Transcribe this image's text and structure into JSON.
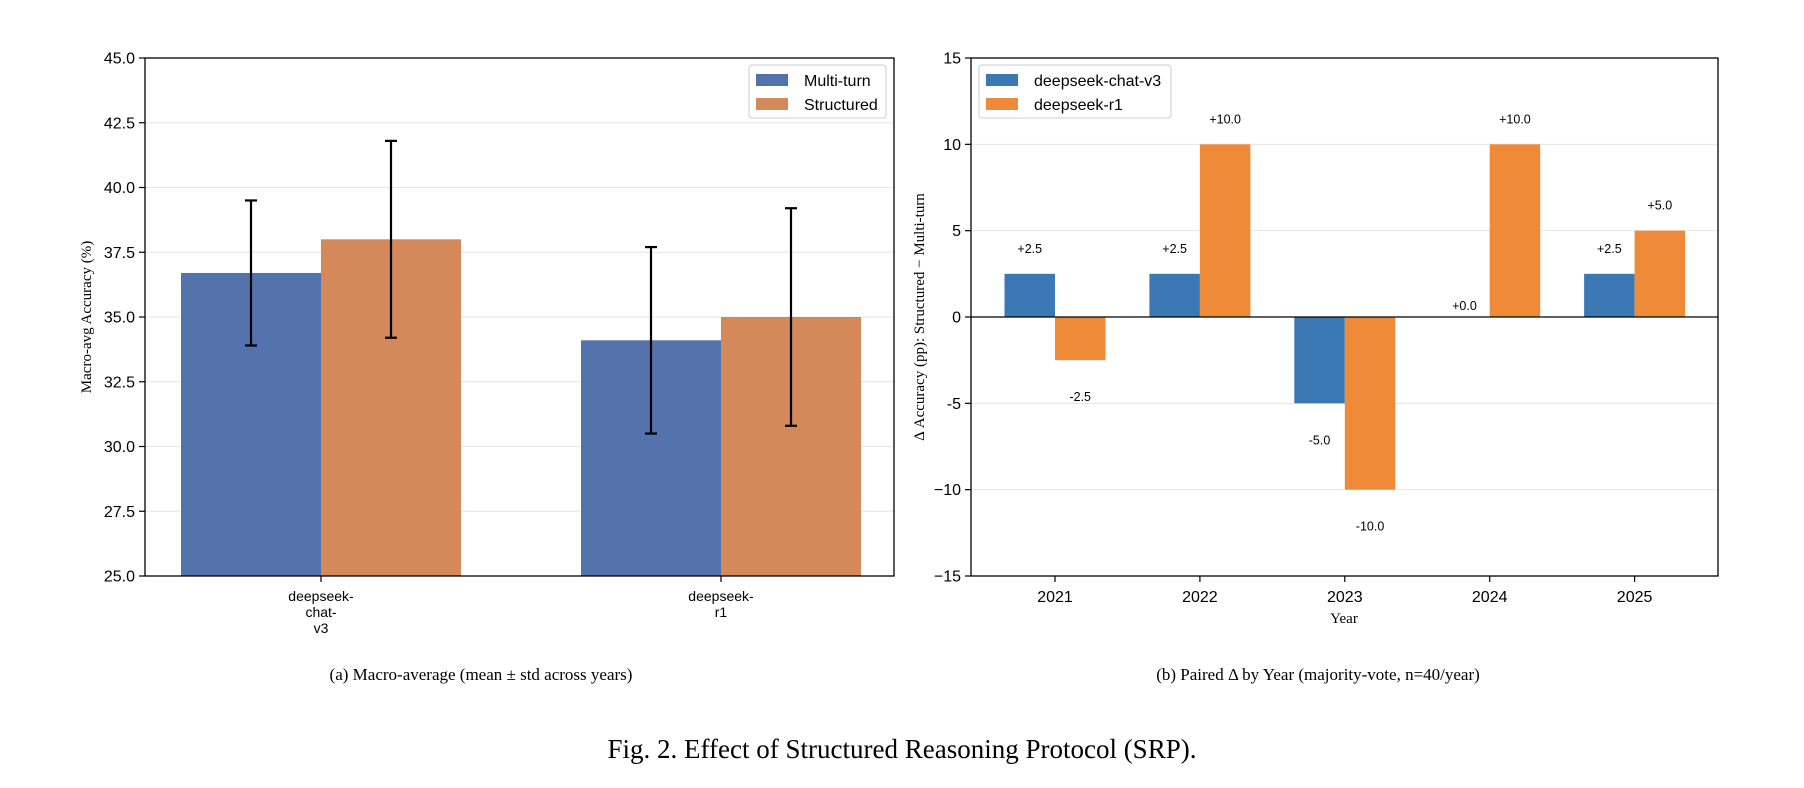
{
  "figure_caption": "Fig. 2.  Effect of Structured Reasoning Protocol (SRP).",
  "colors": {
    "a_multi": "#5472ac",
    "a_struct": "#d4895b",
    "b_v3": "#3c78b4",
    "b_r1": "#ee8a38"
  },
  "chart_data": [
    {
      "type": "bar",
      "caption": "(a) Macro-average (mean ± std across years)",
      "ylabel": "Macro-avg Accuracy (%)",
      "xlabel": "",
      "ylim": [
        25.0,
        45.0
      ],
      "yticks": [
        "25.0",
        "27.5",
        "30.0",
        "32.5",
        "35.0",
        "37.5",
        "40.0",
        "42.5",
        "45.0"
      ],
      "grid": true,
      "legend_position": "top-right",
      "categories": [
        [
          "deepseek-",
          "chat-",
          "v3"
        ],
        [
          "deepseek-",
          "r1"
        ]
      ],
      "series": [
        {
          "name": "Multi-turn",
          "values": [
            36.7,
            34.1
          ],
          "error": [
            2.8,
            3.6
          ]
        },
        {
          "name": "Structured",
          "values": [
            38.0,
            35.0
          ],
          "error": [
            3.8,
            4.2
          ]
        }
      ]
    },
    {
      "type": "bar",
      "caption": "(b) Paired Δ by Year (majority-vote, n=40/year)",
      "ylabel": "Δ Accuracy (pp): Structured − Multi-turn",
      "xlabel": "Year",
      "ylim": [
        -15,
        15
      ],
      "yticks": [
        "−15",
        "−10",
        "-5",
        "0",
        "5",
        "10",
        "15"
      ],
      "grid": true,
      "legend_position": "top-left",
      "categories": [
        "2021",
        "2022",
        "2023",
        "2024",
        "2025"
      ],
      "series": [
        {
          "name": "deepseek-chat-v3",
          "values": [
            2.5,
            2.5,
            -5.0,
            0.0,
            2.5
          ],
          "labels": [
            "+2.5",
            "+2.5",
            "-5.0",
            "+0.0",
            "+2.5"
          ]
        },
        {
          "name": "deepseek-r1",
          "values": [
            -2.5,
            10.0,
            -10.0,
            10.0,
            5.0
          ],
          "labels": [
            "-2.5",
            "+10.0",
            "-10.0",
            "+10.0",
            "+5.0"
          ]
        }
      ]
    }
  ]
}
